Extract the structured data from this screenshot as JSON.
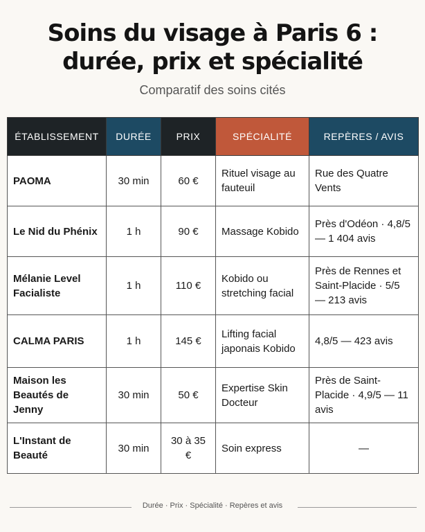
{
  "header": {
    "title_line1": "Soins du visage à Paris 6 :",
    "title_line2": "durée, prix et spécialité",
    "subtitle": "Comparatif des soins cités"
  },
  "table": {
    "columns": [
      "ÉTABLISSEMENT",
      "DURÉE",
      "PRIX",
      "SPÉCIALITÉ",
      "REPÈRES / AVIS"
    ],
    "rows": [
      {
        "name": "PAOMA",
        "duree": "30 min",
        "prix": "60 €",
        "specialite": "Rituel visage au fauteuil",
        "reperes": "Rue des Quatre Vents"
      },
      {
        "name": "Le Nid du Phénix",
        "duree": "1 h",
        "prix": "90 €",
        "specialite": "Massage Kobido",
        "reperes": "Près d'Odéon · 4,8/5 — 1 404 avis"
      },
      {
        "name": "Mélanie Level Facialiste",
        "duree": "1 h",
        "prix": "110 €",
        "specialite": "Kobido ou stretching facial",
        "reperes": "Près de Rennes et Saint-Placide · 5/5 — 213 avis"
      },
      {
        "name": "CALMA PARIS",
        "duree": "1 h",
        "prix": "145 €",
        "specialite": "Lifting facial japonais Kobido",
        "reperes": "4,8/5 — 423 avis"
      },
      {
        "name": "Maison les Beautés de Jenny",
        "duree": "30 min",
        "prix": "50 €",
        "specialite": "Expertise Skin Docteur",
        "reperes": "Près de Saint-Placide · 4,9/5 — 11 avis"
      },
      {
        "name": "L'Instant de Beauté",
        "duree": "30 min",
        "prix": "30 à 35 €",
        "specialite": "Soin express",
        "reperes": "—"
      }
    ]
  },
  "footer": {
    "text": "Durée · Prix · Spécialité · Repères et avis"
  },
  "colors": {
    "header_dark": "#1e2326",
    "header_blue": "#1d4a63",
    "header_orange": "#c0583a",
    "spec_pink": "#f6d5cb",
    "spec_blue": "#d8e6ef",
    "background": "#faf8f4"
  }
}
